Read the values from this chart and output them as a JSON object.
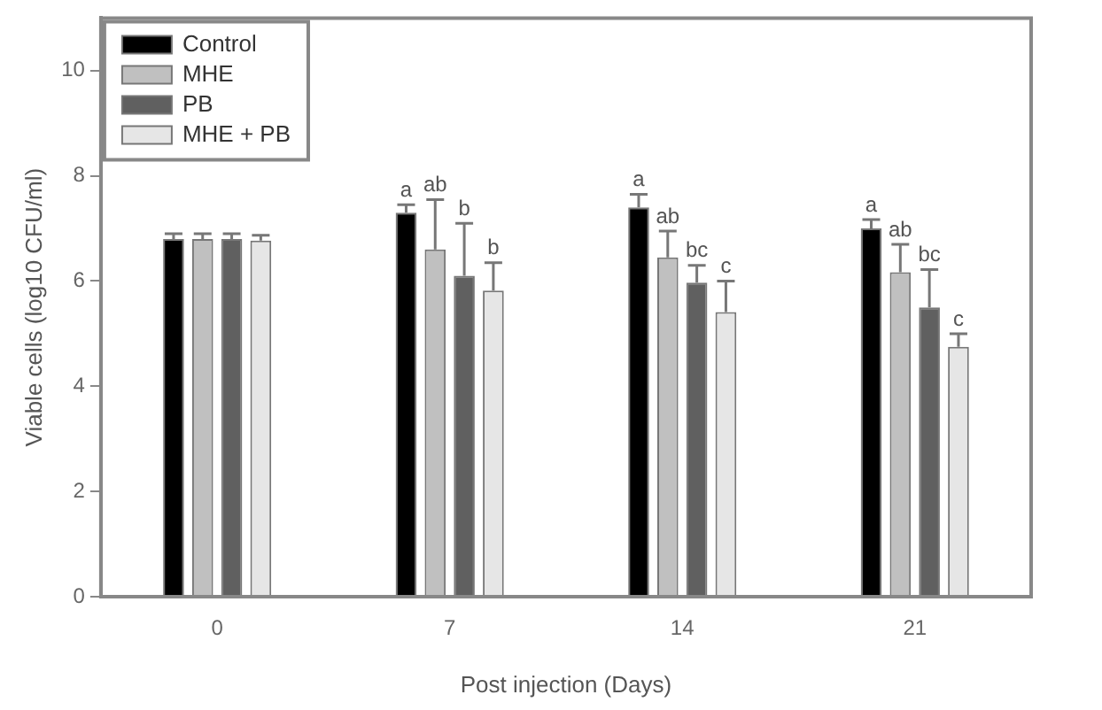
{
  "chart_data": {
    "type": "bar",
    "xlabel": "Post injection (Days)",
    "ylabel": "Viable cells (log10 CFU/ml)",
    "categories": [
      "0",
      "7",
      "14",
      "21"
    ],
    "series": [
      {
        "name": "Control",
        "color": "#000000",
        "values": [
          6.8,
          7.3,
          7.4,
          7.0
        ],
        "errors": [
          [
            6.8,
            6.9
          ],
          [
            7.3,
            7.45
          ],
          [
            7.4,
            7.65
          ],
          [
            7.0,
            7.17
          ]
        ],
        "value_labels": [
          null,
          "a",
          "a",
          "a"
        ]
      },
      {
        "name": "MHE",
        "color": "#c0c0c0",
        "values": [
          6.8,
          6.6,
          6.45,
          6.17
        ],
        "errors": [
          [
            6.8,
            6.9
          ],
          [
            6.6,
            7.55
          ],
          [
            6.45,
            6.95
          ],
          [
            6.17,
            6.7
          ]
        ],
        "value_labels": [
          null,
          "ab",
          "ab",
          "ab"
        ]
      },
      {
        "name": "PB",
        "color": "#606060",
        "values": [
          6.8,
          6.1,
          5.97,
          5.5
        ],
        "errors": [
          [
            6.8,
            6.9
          ],
          [
            6.1,
            7.1
          ],
          [
            5.97,
            6.3
          ],
          [
            5.5,
            6.22
          ]
        ],
        "value_labels": [
          null,
          "b",
          "bc",
          "bc"
        ]
      },
      {
        "name": "MHE + PB",
        "color": "#e6e6e6",
        "values": [
          6.77,
          5.82,
          5.41,
          4.75
        ],
        "errors": [
          [
            6.77,
            6.87
          ],
          [
            5.82,
            6.35
          ],
          [
            5.41,
            6.0
          ],
          [
            4.75,
            5.0
          ]
        ],
        "value_labels": [
          null,
          "b",
          "c",
          "c"
        ]
      }
    ],
    "ylim": [
      0,
      11
    ],
    "yticks": [
      0,
      2,
      4,
      6,
      8,
      10
    ],
    "grid": false,
    "legend": "top left"
  }
}
